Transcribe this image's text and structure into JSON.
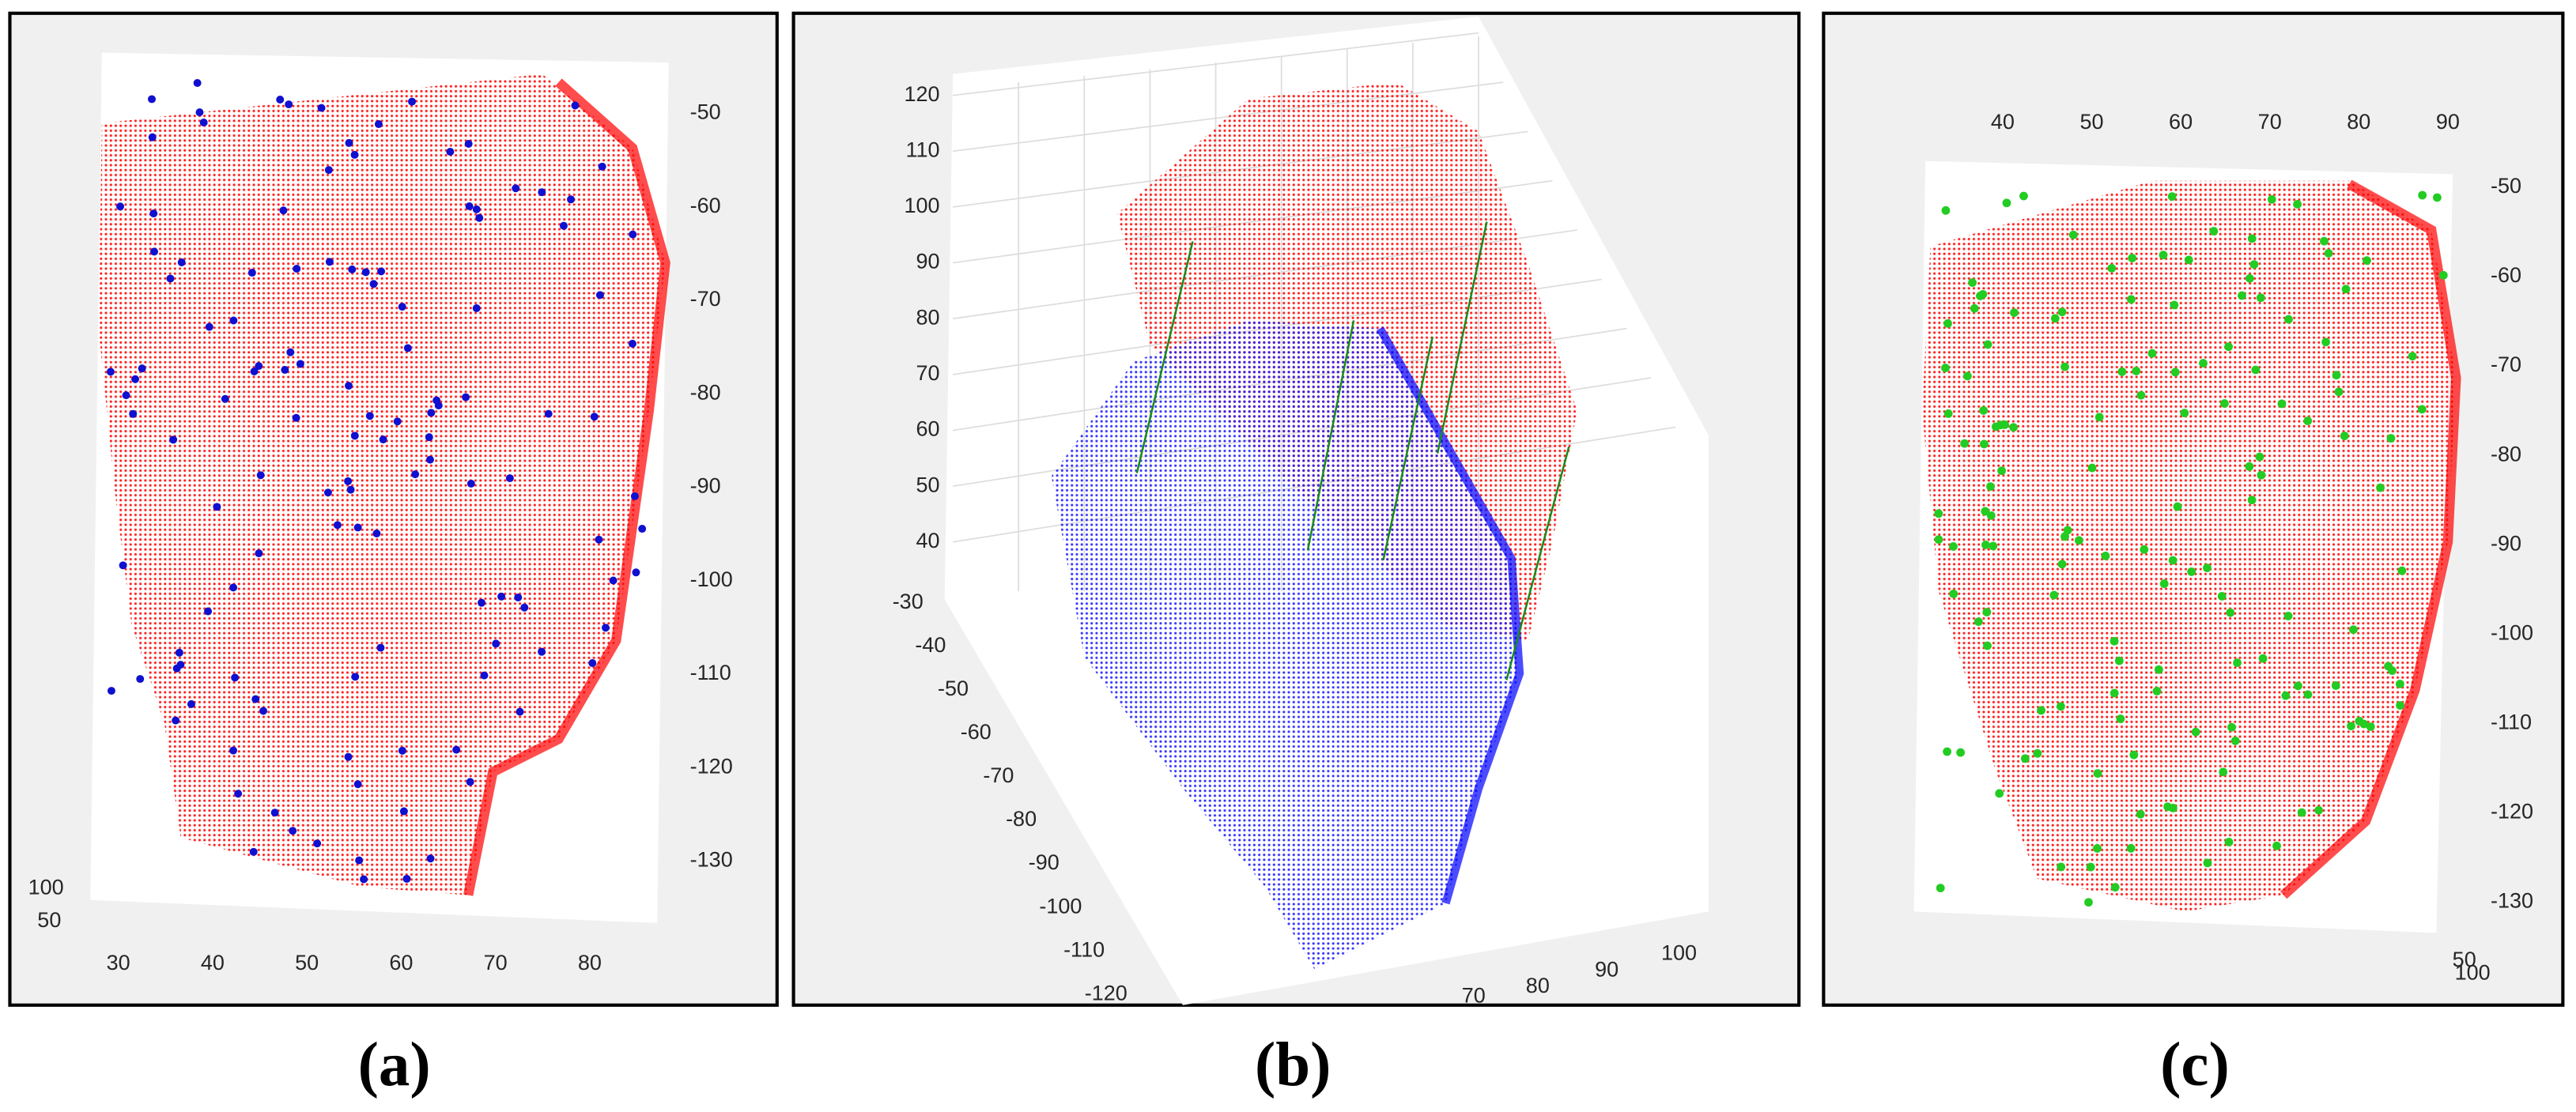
{
  "panels": [
    {
      "caption": "(a)",
      "x_ticks": [
        "30",
        "40",
        "50",
        "60",
        "70",
        "80"
      ],
      "y_ticks": [
        "-50",
        "-60",
        "-70",
        "-80",
        "-90",
        "-100",
        "-110",
        "-120",
        "-130"
      ],
      "z_ticks": [
        "100",
        "50"
      ]
    },
    {
      "caption": "(b)",
      "z_ticks": [
        "120",
        "110",
        "100",
        "90",
        "80",
        "70",
        "60",
        "50",
        "40"
      ],
      "y_ticks": [
        "-30",
        "-40",
        "-50",
        "-60",
        "-70",
        "-80",
        "-90",
        "-100",
        "-110",
        "-120"
      ],
      "x_ticks": [
        "70",
        "80",
        "90",
        "100"
      ]
    },
    {
      "caption": "(c)",
      "x_ticks": [
        "40",
        "50",
        "60",
        "70",
        "80",
        "90"
      ],
      "y_ticks": [
        "-50",
        "-60",
        "-70",
        "-80",
        "-90",
        "-100",
        "-110",
        "-120",
        "-130"
      ],
      "z_ticks": [
        "50",
        "100"
      ]
    }
  ]
}
